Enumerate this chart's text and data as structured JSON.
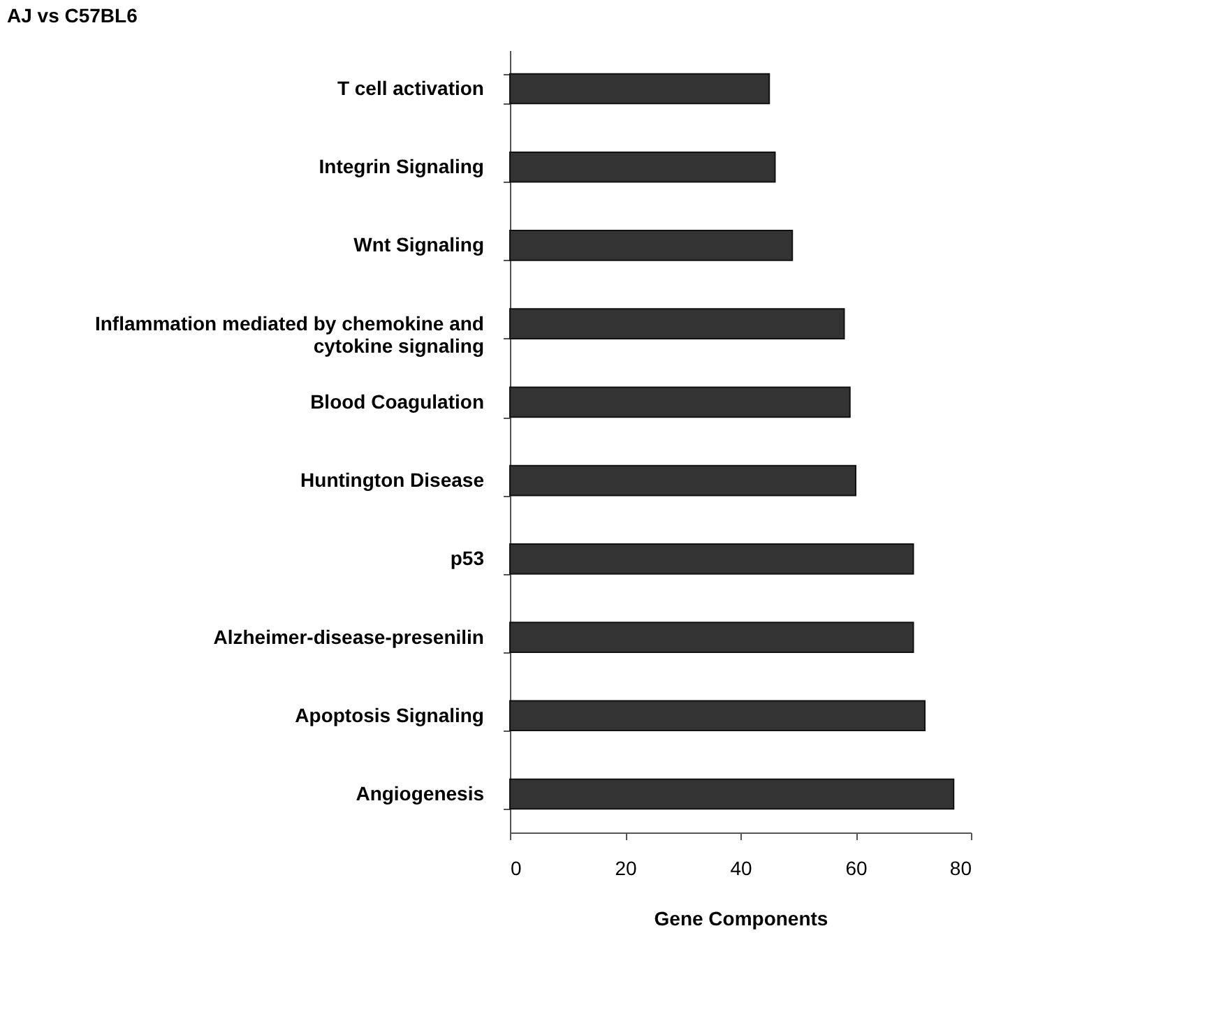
{
  "chart_data": {
    "type": "bar",
    "orientation": "horizontal",
    "title": "AJ vs C57BL6",
    "xlabel": "Gene Components",
    "categories": [
      "T cell activation",
      "Integrin Signaling",
      "Wnt Signaling",
      "Inflammation mediated by chemokine and cytokine signaling",
      "Blood Coagulation",
      "Huntington Disease",
      "p53",
      "Alzheimer-disease-presenilin",
      "Apoptosis Signaling",
      "Angiogenesis"
    ],
    "values": [
      45,
      46,
      49,
      58,
      59,
      60,
      70,
      70,
      72,
      77
    ],
    "color": "#333333",
    "xlim": [
      0,
      80
    ],
    "xticks": [
      0,
      20,
      40,
      60,
      80
    ],
    "grid": false
  }
}
